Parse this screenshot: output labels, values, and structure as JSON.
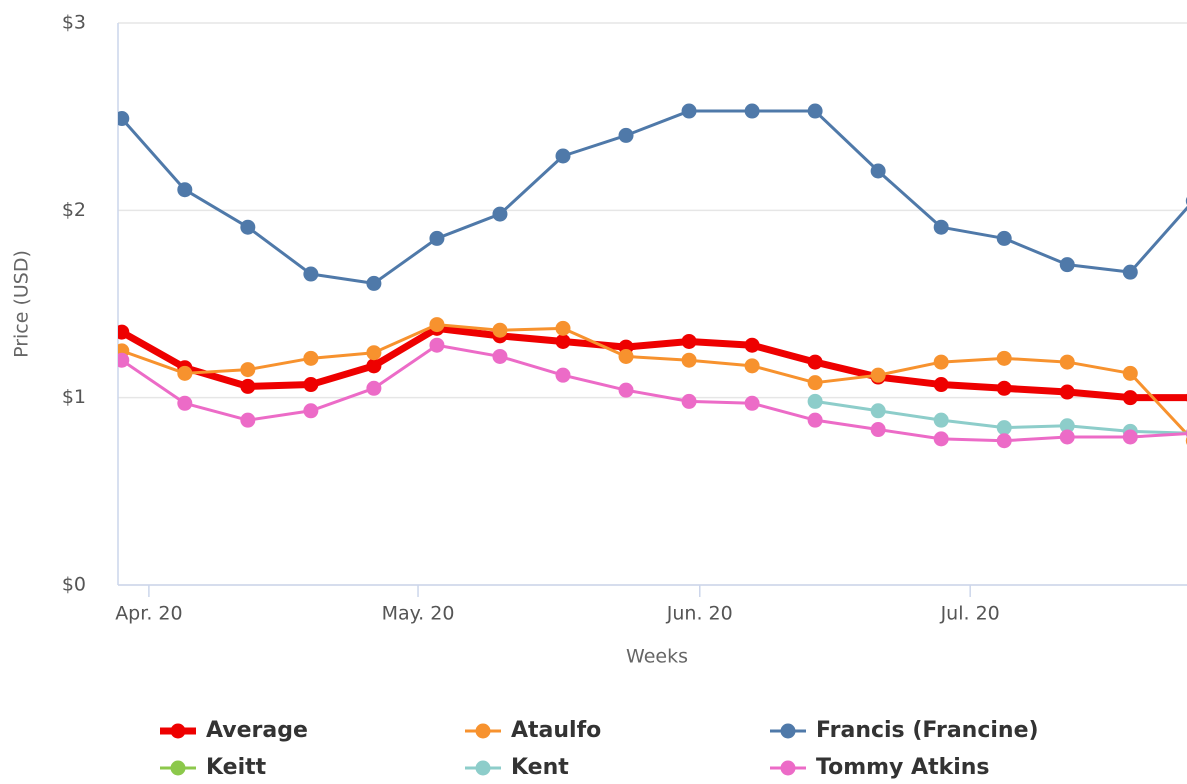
{
  "chart_data": {
    "type": "line",
    "y_label": "Price (USD)",
    "x_label": "Weeks",
    "categories": [
      null,
      null,
      null,
      null,
      null,
      null,
      null,
      null,
      null,
      null,
      null,
      null,
      null,
      null,
      null,
      null,
      null,
      null
    ],
    "xlim": [
      -0.06,
      16.9
    ],
    "xticks": [
      {
        "value": 0.43,
        "label": "Apr. 20"
      },
      {
        "value": 4.7,
        "label": "May. 20"
      },
      {
        "value": 9.17,
        "label": "Jun. 20"
      },
      {
        "value": 13.46,
        "label": "Jul. 20"
      }
    ],
    "ylim": [
      0,
      3
    ],
    "yticks": [
      {
        "value": 0,
        "label": "$0"
      },
      {
        "value": 1,
        "label": "$1"
      },
      {
        "value": 2,
        "label": "$2"
      },
      {
        "value": 3,
        "label": "$3"
      }
    ],
    "grid": true,
    "legend": "bottom",
    "series": [
      {
        "name": "Average",
        "color": "#ee0000",
        "values": [
          1.35,
          1.16,
          1.06,
          1.07,
          1.17,
          1.37,
          1.33,
          1.3,
          1.27,
          1.3,
          1.28,
          1.19,
          1.11,
          1.07,
          1.05,
          1.03,
          1.0,
          1.0
        ]
      },
      {
        "name": "Ataulfo",
        "color": "#f7922e",
        "values": [
          1.25,
          1.13,
          1.15,
          1.21,
          1.24,
          1.39,
          1.36,
          1.37,
          1.22,
          1.2,
          1.17,
          1.08,
          1.12,
          1.19,
          1.21,
          1.19,
          1.13,
          0.77
        ]
      },
      {
        "name": "Francis (Francine)",
        "color": "#4f79a9",
        "values": [
          2.49,
          2.11,
          1.91,
          1.66,
          1.61,
          1.85,
          1.98,
          2.29,
          2.4,
          2.53,
          2.53,
          2.53,
          2.21,
          1.91,
          1.85,
          1.71,
          1.67,
          2.05
        ]
      },
      {
        "name": "Keitt",
        "color": "#8cc84b",
        "values": [
          null,
          null,
          null,
          null,
          null,
          null,
          null,
          null,
          null,
          null,
          null,
          null,
          null,
          null,
          null,
          null,
          null,
          null
        ]
      },
      {
        "name": "Kent",
        "color": "#8dcdca",
        "values": [
          null,
          null,
          null,
          null,
          null,
          null,
          null,
          null,
          null,
          null,
          null,
          0.98,
          0.93,
          0.88,
          0.84,
          0.85,
          0.82,
          0.81
        ]
      },
      {
        "name": "Tommy Atkins",
        "color": "#ec6bc7",
        "values": [
          1.2,
          0.97,
          0.88,
          0.93,
          1.05,
          1.28,
          1.22,
          1.12,
          1.04,
          0.98,
          0.97,
          0.88,
          0.83,
          0.78,
          0.77,
          0.79,
          0.79,
          0.81
        ]
      }
    ]
  }
}
